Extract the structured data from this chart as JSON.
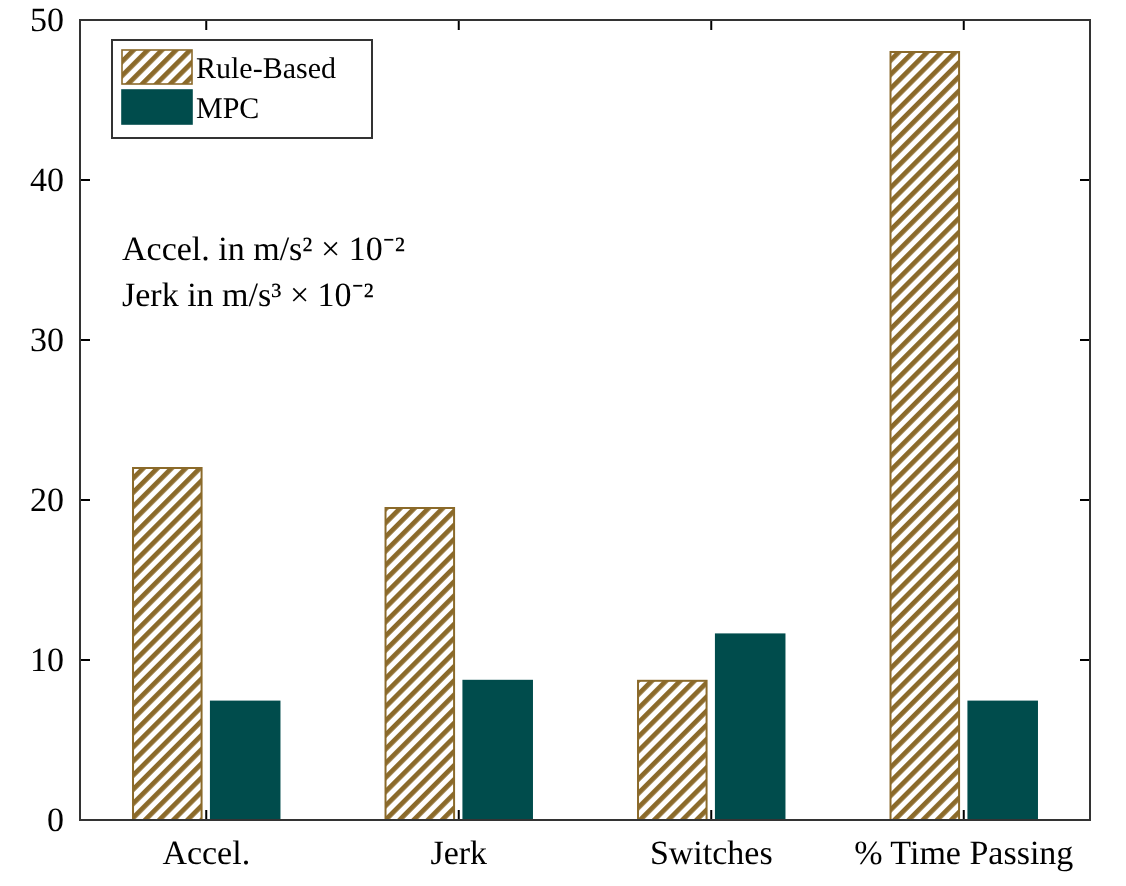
{
  "chart_data": {
    "type": "bar",
    "categories": [
      "Accel.",
      "Jerk",
      "Switches",
      "% Time Passing"
    ],
    "series": [
      {
        "name": "Rule-Based",
        "color": "#8b6a2a",
        "values": [
          22.0,
          19.5,
          8.7,
          48.0
        ]
      },
      {
        "name": "MPC",
        "color": "#004c4c",
        "values": [
          7.4,
          8.7,
          11.6,
          7.4
        ]
      }
    ],
    "ylim": [
      0,
      50
    ],
    "yticks": [
      0,
      10,
      20,
      30,
      40,
      50
    ],
    "grid": false,
    "legend": "top left",
    "annotations": [
      "Accel. in m/s² × 10⁻²",
      "Jerk in m/s³ × 10⁻²"
    ]
  }
}
